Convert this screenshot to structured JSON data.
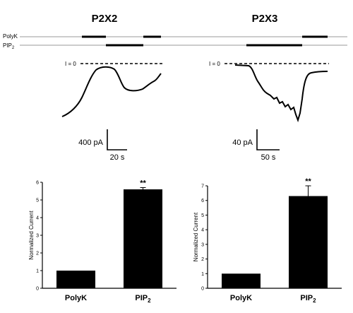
{
  "top": {
    "panels": [
      {
        "title": "P2X2",
        "baseline_label": "I = 0",
        "scale_y": "400 pA",
        "scale_x": "20 s"
      },
      {
        "title": "P2X3",
        "baseline_label": "I = 0",
        "scale_y": "40 pA",
        "scale_x": "50 s"
      }
    ],
    "row_labels": {
      "polyk": "PolyK",
      "pip2_base": "PIP",
      "pip2_sub": "2"
    }
  },
  "chart_data": [
    {
      "type": "bar",
      "categories": [
        "PolyK",
        "PIP2"
      ],
      "category_display": [
        {
          "base": "PolyK",
          "sub": ""
        },
        {
          "base": "PIP",
          "sub": "2"
        }
      ],
      "values": [
        1.0,
        5.6
      ],
      "errors": [
        0,
        0.1
      ],
      "significance": [
        "",
        "**"
      ],
      "ylabel": "Normalized Current",
      "ylim": [
        0,
        6
      ],
      "yticks": [
        0,
        1,
        2,
        3,
        4,
        5,
        6
      ]
    },
    {
      "type": "bar",
      "categories": [
        "PolyK",
        "PIP2"
      ],
      "category_display": [
        {
          "base": "PolyK",
          "sub": ""
        },
        {
          "base": "PIP",
          "sub": "2"
        }
      ],
      "values": [
        1.0,
        6.3
      ],
      "errors": [
        0,
        0.7
      ],
      "significance": [
        "",
        "**"
      ],
      "ylabel": "Normalized Current",
      "ylim": [
        0,
        7
      ],
      "yticks": [
        0,
        1,
        2,
        3,
        4,
        5,
        6,
        7
      ]
    }
  ]
}
